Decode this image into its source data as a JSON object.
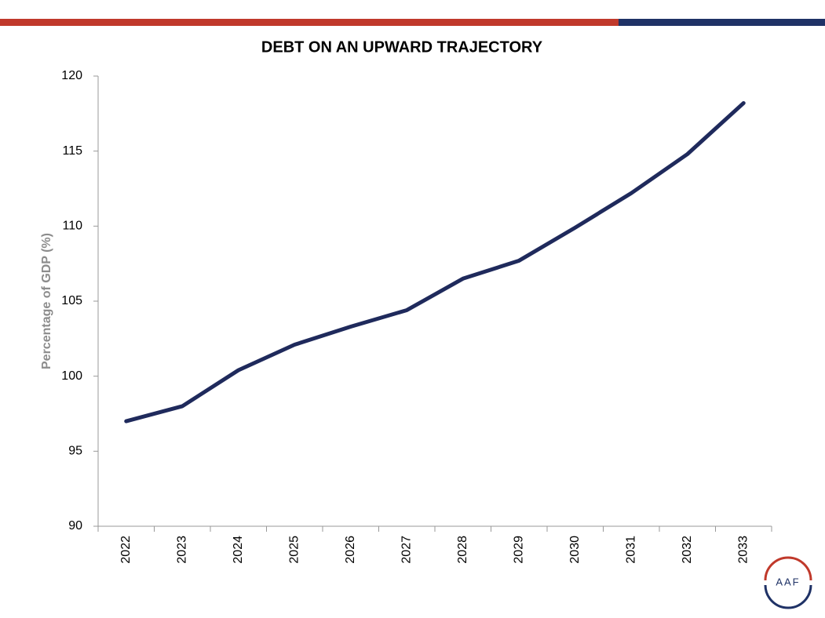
{
  "chart_data": {
    "type": "line",
    "title": "DEBT ON AN UPWARD TRAJECTORY",
    "y_label": "Percentage of GDP (%)",
    "categories": [
      "2022",
      "2023",
      "2024",
      "2025",
      "2026",
      "2027",
      "2028",
      "2029",
      "2030",
      "2031",
      "2032",
      "2033"
    ],
    "series": [
      {
        "name": "Debt",
        "color": "#1f2a5c",
        "values": [
          97.0,
          98.0,
          100.4,
          102.1,
          103.3,
          104.4,
          106.5,
          107.7,
          109.9,
          112.2,
          114.8,
          118.2
        ]
      }
    ],
    "ylim": [
      90,
      120
    ],
    "yticks": [
      90,
      95,
      100,
      105,
      110,
      115,
      120
    ],
    "grid": false,
    "legend": false
  },
  "logo": "AAF"
}
